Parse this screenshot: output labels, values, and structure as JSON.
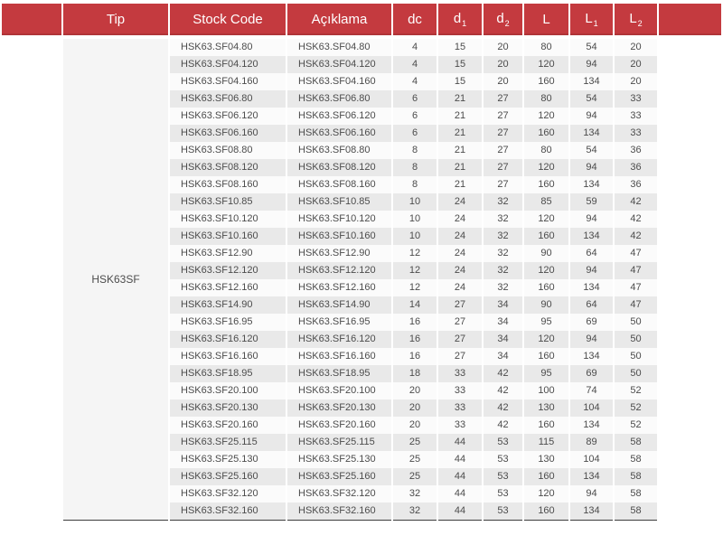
{
  "colors": {
    "header_red": "#c43a3f",
    "header_text": "#ffffff",
    "row_base": "#fbfbfb",
    "row_alt": "#e9e9e9",
    "tip_bg": "#f5f5f5",
    "text": "#4c4c4c",
    "border_dark": "#3d3d3d"
  },
  "table": {
    "tip_label": "HSK63SF",
    "columns": [
      {
        "base": "",
        "sub": ""
      },
      {
        "base": "Tip",
        "sub": ""
      },
      {
        "base": "Stock Code",
        "sub": ""
      },
      {
        "base": "Açıklama",
        "sub": ""
      },
      {
        "base": "dc",
        "sub": ""
      },
      {
        "base": "d",
        "sub": "1"
      },
      {
        "base": "d",
        "sub": "2"
      },
      {
        "base": "L",
        "sub": ""
      },
      {
        "base": "L",
        "sub": "1"
      },
      {
        "base": "L",
        "sub": "2"
      },
      {
        "base": "",
        "sub": ""
      }
    ],
    "rows": [
      {
        "stock_code": "HSK63.SF04.80",
        "aciklama": "HSK63.SF04.80",
        "dc": 4,
        "d1": 15,
        "d2": 20,
        "L": 80,
        "L1": 54,
        "L2": 20
      },
      {
        "stock_code": "HSK63.SF04.120",
        "aciklama": "HSK63.SF04.120",
        "dc": 4,
        "d1": 15,
        "d2": 20,
        "L": 120,
        "L1": 94,
        "L2": 20
      },
      {
        "stock_code": "HSK63.SF04.160",
        "aciklama": "HSK63.SF04.160",
        "dc": 4,
        "d1": 15,
        "d2": 20,
        "L": 160,
        "L1": 134,
        "L2": 20
      },
      {
        "stock_code": "HSK63.SF06.80",
        "aciklama": "HSK63.SF06.80",
        "dc": 6,
        "d1": 21,
        "d2": 27,
        "L": 80,
        "L1": 54,
        "L2": 33
      },
      {
        "stock_code": "HSK63.SF06.120",
        "aciklama": "HSK63.SF06.120",
        "dc": 6,
        "d1": 21,
        "d2": 27,
        "L": 120,
        "L1": 94,
        "L2": 33
      },
      {
        "stock_code": "HSK63.SF06.160",
        "aciklama": "HSK63.SF06.160",
        "dc": 6,
        "d1": 21,
        "d2": 27,
        "L": 160,
        "L1": 134,
        "L2": 33
      },
      {
        "stock_code": "HSK63.SF08.80",
        "aciklama": "HSK63.SF08.80",
        "dc": 8,
        "d1": 21,
        "d2": 27,
        "L": 80,
        "L1": 54,
        "L2": 36
      },
      {
        "stock_code": "HSK63.SF08.120",
        "aciklama": "HSK63.SF08.120",
        "dc": 8,
        "d1": 21,
        "d2": 27,
        "L": 120,
        "L1": 94,
        "L2": 36
      },
      {
        "stock_code": "HSK63.SF08.160",
        "aciklama": "HSK63.SF08.160",
        "dc": 8,
        "d1": 21,
        "d2": 27,
        "L": 160,
        "L1": 134,
        "L2": 36
      },
      {
        "stock_code": "HSK63.SF10.85",
        "aciklama": "HSK63.SF10.85",
        "dc": 10,
        "d1": 24,
        "d2": 32,
        "L": 85,
        "L1": 59,
        "L2": 42
      },
      {
        "stock_code": "HSK63.SF10.120",
        "aciklama": "HSK63.SF10.120",
        "dc": 10,
        "d1": 24,
        "d2": 32,
        "L": 120,
        "L1": 94,
        "L2": 42
      },
      {
        "stock_code": "HSK63.SF10.160",
        "aciklama": "HSK63.SF10.160",
        "dc": 10,
        "d1": 24,
        "d2": 32,
        "L": 160,
        "L1": 134,
        "L2": 42
      },
      {
        "stock_code": "HSK63.SF12.90",
        "aciklama": "HSK63.SF12.90",
        "dc": 12,
        "d1": 24,
        "d2": 32,
        "L": 90,
        "L1": 64,
        "L2": 47
      },
      {
        "stock_code": "HSK63.SF12.120",
        "aciklama": "HSK63.SF12.120",
        "dc": 12,
        "d1": 24,
        "d2": 32,
        "L": 120,
        "L1": 94,
        "L2": 47
      },
      {
        "stock_code": "HSK63.SF12.160",
        "aciklama": "HSK63.SF12.160",
        "dc": 12,
        "d1": 24,
        "d2": 32,
        "L": 160,
        "L1": 134,
        "L2": 47
      },
      {
        "stock_code": "HSK63.SF14.90",
        "aciklama": "HSK63.SF14.90",
        "dc": 14,
        "d1": 27,
        "d2": 34,
        "L": 90,
        "L1": 64,
        "L2": 47
      },
      {
        "stock_code": "HSK63.SF16.95",
        "aciklama": "HSK63.SF16.95",
        "dc": 16,
        "d1": 27,
        "d2": 34,
        "L": 95,
        "L1": 69,
        "L2": 50
      },
      {
        "stock_code": "HSK63.SF16.120",
        "aciklama": "HSK63.SF16.120",
        "dc": 16,
        "d1": 27,
        "d2": 34,
        "L": 120,
        "L1": 94,
        "L2": 50
      },
      {
        "stock_code": "HSK63.SF16.160",
        "aciklama": "HSK63.SF16.160",
        "dc": 16,
        "d1": 27,
        "d2": 34,
        "L": 160,
        "L1": 134,
        "L2": 50
      },
      {
        "stock_code": "HSK63.SF18.95",
        "aciklama": "HSK63.SF18.95",
        "dc": 18,
        "d1": 33,
        "d2": 42,
        "L": 95,
        "L1": 69,
        "L2": 50
      },
      {
        "stock_code": "HSK63.SF20.100",
        "aciklama": "HSK63.SF20.100",
        "dc": 20,
        "d1": 33,
        "d2": 42,
        "L": 100,
        "L1": 74,
        "L2": 52
      },
      {
        "stock_code": "HSK63.SF20.130",
        "aciklama": "HSK63.SF20.130",
        "dc": 20,
        "d1": 33,
        "d2": 42,
        "L": 130,
        "L1": 104,
        "L2": 52
      },
      {
        "stock_code": "HSK63.SF20.160",
        "aciklama": "HSK63.SF20.160",
        "dc": 20,
        "d1": 33,
        "d2": 42,
        "L": 160,
        "L1": 134,
        "L2": 52
      },
      {
        "stock_code": "HSK63.SF25.115",
        "aciklama": "HSK63.SF25.115",
        "dc": 25,
        "d1": 44,
        "d2": 53,
        "L": 115,
        "L1": 89,
        "L2": 58
      },
      {
        "stock_code": "HSK63.SF25.130",
        "aciklama": "HSK63.SF25.130",
        "dc": 25,
        "d1": 44,
        "d2": 53,
        "L": 130,
        "L1": 104,
        "L2": 58
      },
      {
        "stock_code": "HSK63.SF25.160",
        "aciklama": "HSK63.SF25.160",
        "dc": 25,
        "d1": 44,
        "d2": 53,
        "L": 160,
        "L1": 134,
        "L2": 58
      },
      {
        "stock_code": "HSK63.SF32.120",
        "aciklama": "HSK63.SF32.120",
        "dc": 32,
        "d1": 44,
        "d2": 53,
        "L": 120,
        "L1": 94,
        "L2": 58
      },
      {
        "stock_code": "HSK63.SF32.160",
        "aciklama": "HSK63.SF32.160",
        "dc": 32,
        "d1": 44,
        "d2": 53,
        "L": 160,
        "L1": 134,
        "L2": 58
      }
    ]
  }
}
